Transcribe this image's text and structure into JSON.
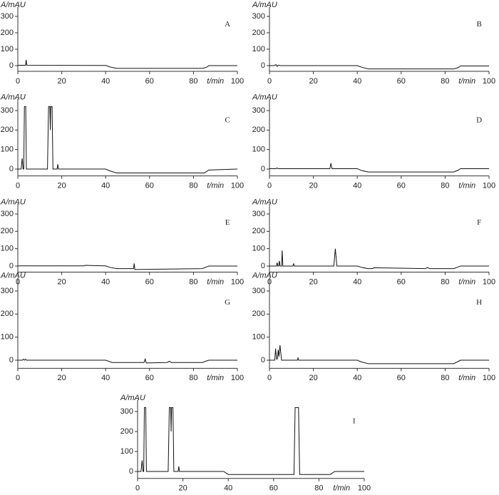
{
  "chart_data": [
    {
      "type": "line",
      "title": "A",
      "y_label": "A/mAU",
      "x_label": "t/min",
      "xlim": [
        0,
        100
      ],
      "ylim": [
        -35,
        360
      ],
      "xticks": [
        0,
        20,
        40,
        60,
        80,
        100
      ],
      "yticks": [
        0,
        100,
        200,
        300
      ],
      "series": [
        {
          "color": "#111111",
          "x": [
            0,
            3.5,
            3.8,
            4.1,
            40,
            42,
            45,
            84,
            86,
            87,
            100
          ],
          "values": [
            2,
            2,
            35,
            2,
            1,
            -8,
            -17,
            -17,
            -10,
            0,
            0
          ]
        }
      ]
    },
    {
      "type": "line",
      "title": "B",
      "y_label": "A/mAU",
      "x_label": "t/min",
      "xlim": [
        0,
        100
      ],
      "ylim": [
        -35,
        360
      ],
      "xticks": [
        0,
        20,
        40,
        60,
        80,
        100
      ],
      "yticks": [
        0,
        100,
        200,
        300
      ],
      "series": [
        {
          "color": "#111111",
          "x": [
            0,
            2,
            3,
            3.5,
            4,
            5,
            40,
            42,
            45,
            84,
            86,
            87,
            100
          ],
          "values": [
            0,
            0,
            6,
            -5,
            3,
            0,
            0,
            -10,
            -20,
            -20,
            -12,
            -2,
            -2
          ]
        }
      ]
    },
    {
      "type": "line",
      "title": "C",
      "y_label": "A/mAU",
      "x_label": "t/min",
      "xlim": [
        0,
        100
      ],
      "ylim": [
        -35,
        360
      ],
      "xticks": [
        0,
        20,
        40,
        60,
        80,
        100
      ],
      "yticks": [
        0,
        100,
        200,
        300
      ],
      "series": [
        {
          "color": "#111111",
          "x": [
            0,
            1.5,
            2,
            2.4,
            2.7,
            3,
            3.6,
            3.9,
            13.5,
            14,
            14.6,
            14.8,
            15,
            15.6,
            16,
            17.9,
            18.2,
            18.5,
            26,
            40,
            42,
            45,
            85,
            87,
            100
          ],
          "values": [
            0,
            0,
            55,
            0,
            0,
            320,
            320,
            0,
            0,
            320,
            320,
            200,
            320,
            320,
            0,
            0,
            25,
            0,
            0,
            0,
            -10,
            -20,
            -20,
            -5,
            0
          ]
        }
      ]
    },
    {
      "type": "line",
      "title": "D",
      "y_label": "A/mAU",
      "x_label": "t/min",
      "xlim": [
        0,
        100
      ],
      "ylim": [
        -35,
        360
      ],
      "xticks": [
        0,
        20,
        40,
        60,
        80,
        100
      ],
      "yticks": [
        0,
        100,
        200,
        300
      ],
      "series": [
        {
          "color": "#111111",
          "x": [
            0,
            3,
            3.5,
            4,
            27.5,
            28,
            28.5,
            40,
            42,
            45,
            84,
            86,
            87,
            100
          ],
          "values": [
            2,
            2,
            6,
            2,
            2,
            30,
            2,
            2,
            -8,
            -15,
            -15,
            -5,
            2,
            2
          ]
        }
      ]
    },
    {
      "type": "line",
      "title": "E",
      "y_label": "A/mAU",
      "x_label": "t/min",
      "xlim": [
        0,
        100
      ],
      "ylim": [
        -35,
        360
      ],
      "xticks": [
        0,
        20,
        40,
        60,
        80,
        100
      ],
      "yticks": [
        0,
        100,
        200,
        300
      ],
      "series": [
        {
          "color": "#111111",
          "x": [
            0,
            30,
            31,
            40,
            42,
            45,
            52.7,
            53,
            53.3,
            84,
            86,
            87,
            100
          ],
          "values": [
            1,
            1,
            4,
            1,
            -8,
            -15,
            -15,
            15,
            -20,
            -15,
            -5,
            0,
            0
          ]
        }
      ]
    },
    {
      "type": "line",
      "title": "F",
      "y_label": "A/mAU",
      "x_label": "t/min",
      "xlim": [
        0,
        100
      ],
      "ylim": [
        -35,
        360
      ],
      "xticks": [
        0,
        20,
        40,
        60,
        80,
        100
      ],
      "yticks": [
        0,
        100,
        200,
        300
      ],
      "series": [
        {
          "color": "#111111",
          "x": [
            0,
            3.2,
            3.5,
            3.8,
            4.2,
            4.5,
            4.8,
            5.5,
            5.8,
            6.1,
            10.7,
            11,
            11.3,
            29.3,
            30,
            30.7,
            40,
            42,
            45,
            47,
            47.5,
            71,
            72,
            73,
            84,
            86,
            87,
            100
          ],
          "values": [
            0,
            0,
            20,
            0,
            0,
            30,
            0,
            0,
            90,
            0,
            0,
            15,
            0,
            0,
            100,
            0,
            0,
            -8,
            -15,
            -15,
            -10,
            -15,
            -8,
            -15,
            -15,
            -5,
            0,
            0
          ]
        }
      ]
    },
    {
      "type": "line",
      "title": "G",
      "y_label": "A/mAU",
      "x_label": "t/min",
      "xlim": [
        0,
        100
      ],
      "ylim": [
        -35,
        360
      ],
      "xticks": [
        0,
        20,
        40,
        60,
        80,
        100
      ],
      "yticks": [
        0,
        100,
        200,
        300
      ],
      "series": [
        {
          "color": "#111111",
          "x": [
            0,
            2,
            2.5,
            3,
            3.5,
            4,
            40,
            43,
            57.5,
            58,
            58.5,
            68,
            69,
            70,
            84,
            86,
            87,
            100
          ],
          "values": [
            0,
            0,
            4,
            0,
            4,
            0,
            0,
            -10,
            -10,
            5,
            -12,
            -10,
            -5,
            -10,
            -10,
            -3,
            0,
            0
          ]
        }
      ]
    },
    {
      "type": "line",
      "title": "H",
      "y_label": "A/mAU",
      "x_label": "t/min",
      "xlim": [
        0,
        100
      ],
      "ylim": [
        -35,
        360
      ],
      "xticks": [
        0,
        20,
        40,
        60,
        80,
        100
      ],
      "yticks": [
        0,
        100,
        200,
        300
      ],
      "series": [
        {
          "color": "#111111",
          "x": [
            0,
            2.4,
            2.8,
            3.2,
            3.6,
            4,
            4.3,
            4.8,
            5.5,
            12.7,
            13,
            13.3,
            40,
            42,
            45,
            84,
            86,
            87,
            100
          ],
          "values": [
            0,
            0,
            50,
            5,
            5,
            45,
            15,
            65,
            0,
            0,
            10,
            0,
            0,
            -8,
            -15,
            -15,
            -5,
            0,
            0
          ]
        }
      ]
    },
    {
      "type": "line",
      "title": "I",
      "y_label": "A/mAU",
      "x_label": "t/min",
      "xlim": [
        0,
        100
      ],
      "ylim": [
        -35,
        360
      ],
      "xticks": [
        0,
        20,
        40,
        60,
        80,
        100
      ],
      "yticks": [
        0,
        100,
        200,
        300
      ],
      "series": [
        {
          "color": "#111111",
          "x": [
            0,
            1.5,
            2,
            2.4,
            2.7,
            3,
            3.6,
            3.9,
            13.5,
            14,
            14.6,
            14.8,
            15,
            15.6,
            16,
            17.9,
            18.2,
            18.5,
            38,
            40,
            69,
            69.5,
            71,
            71.5,
            85,
            87,
            100
          ],
          "values": [
            0,
            0,
            55,
            0,
            0,
            320,
            320,
            0,
            0,
            320,
            320,
            200,
            320,
            320,
            0,
            0,
            25,
            0,
            0,
            -15,
            -15,
            320,
            320,
            -15,
            -15,
            0,
            0
          ]
        }
      ]
    }
  ]
}
